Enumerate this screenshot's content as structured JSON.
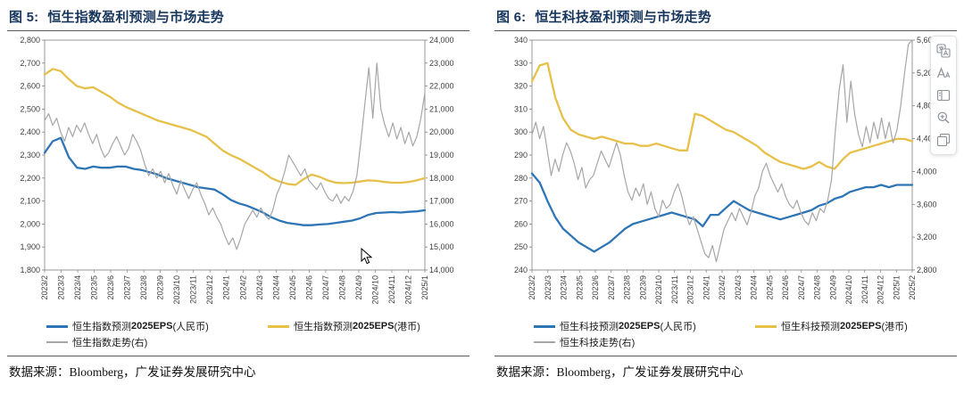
{
  "chart_data": [
    {
      "type": "line",
      "figure_label": "图 5:",
      "title": "恒生指数盈利预测与市场走势",
      "source": "数据来源：Bloomberg，广发证券发展研究中心",
      "grid": false,
      "legend_position": "bottom",
      "axis_left": {
        "min": 1800,
        "max": 2800,
        "step": 100
      },
      "axis_right": {
        "min": 14000,
        "max": 24000,
        "step": 1000
      },
      "x_labels": [
        "2023/2",
        "2023/3",
        "2023/4",
        "2023/5",
        "2023/6",
        "2023/7",
        "2023/8",
        "2023/9",
        "2023/10",
        "2023/11",
        "2023/12",
        "2024/1",
        "2024/2",
        "2024/3",
        "2024/4",
        "2024/5",
        "2024/6",
        "2024/7",
        "2024/8",
        "2024/9",
        "2024/10",
        "2024/11",
        "2024/12",
        "2025/1"
      ],
      "series": [
        {
          "name_parts": [
            "恒生指数预测",
            "2025EPS",
            "(人民币)"
          ],
          "axis": "left",
          "color": "#2e75b6",
          "width": 2.3,
          "values": [
            2310,
            2360,
            2375,
            2290,
            2245,
            2240,
            2250,
            2245,
            2245,
            2250,
            2250,
            2240,
            2235,
            2225,
            2215,
            2200,
            2190,
            2180,
            2170,
            2160,
            2155,
            2150,
            2130,
            2105,
            2090,
            2080,
            2065,
            2050,
            2030,
            2015,
            2005,
            2000,
            1995,
            1995,
            1998,
            2000,
            2005,
            2010,
            2015,
            2025,
            2040,
            2048,
            2050,
            2052,
            2050,
            2053,
            2055,
            2060
          ]
        },
        {
          "name_parts": [
            "恒生指数预测",
            "2025EPS",
            "(港币)"
          ],
          "axis": "left",
          "color": "#e6c049",
          "width": 2.3,
          "values": [
            2650,
            2675,
            2665,
            2630,
            2600,
            2590,
            2595,
            2575,
            2555,
            2530,
            2510,
            2495,
            2480,
            2465,
            2450,
            2440,
            2430,
            2420,
            2410,
            2395,
            2380,
            2350,
            2320,
            2300,
            2285,
            2265,
            2245,
            2225,
            2200,
            2185,
            2175,
            2170,
            2195,
            2215,
            2205,
            2190,
            2180,
            2178,
            2180,
            2185,
            2190,
            2188,
            2183,
            2180,
            2180,
            2183,
            2190,
            2200
          ]
        },
        {
          "name_parts": [
            "恒生指数走势(右)",
            "",
            ""
          ],
          "axis": "right",
          "color": "#a6a6a6",
          "width": 1.2,
          "values": [
            20500,
            20800,
            20300,
            20600,
            20000,
            19600,
            20200,
            19800,
            20300,
            20000,
            20400,
            19900,
            19500,
            19900,
            19300,
            18900,
            19100,
            19500,
            19800,
            19400,
            19000,
            19300,
            19900,
            19600,
            19200,
            18600,
            18100,
            18400,
            18000,
            18300,
            17800,
            18200,
            17700,
            17300,
            17900,
            17500,
            17100,
            17500,
            17800,
            17300,
            16900,
            16400,
            16700,
            16300,
            16000,
            15500,
            15100,
            15400,
            14900,
            15400,
            16000,
            16300,
            16600,
            16300,
            16700,
            16400,
            16200,
            16600,
            17300,
            17700,
            18300,
            19000,
            18700,
            18400,
            18100,
            18400,
            17900,
            17700,
            17500,
            17800,
            17400,
            17100,
            17000,
            17300,
            16900,
            17200,
            17000,
            17400,
            18100,
            19600,
            21200,
            22800,
            20600,
            23000,
            21000,
            20300,
            19800,
            20400,
            19700,
            20200,
            19500,
            20000,
            19400,
            19800,
            20600,
            21700
          ]
        }
      ]
    },
    {
      "type": "line",
      "figure_label": "图 6:",
      "title": "恒生科技盈利预测与市场走势",
      "source": "数据来源：Bloomberg，广发证券发展研究中心",
      "grid": false,
      "legend_position": "bottom",
      "axis_left": {
        "min": 240,
        "max": 340,
        "step": 10
      },
      "axis_right": {
        "min": 2800,
        "max": 5600,
        "step": 400
      },
      "x_labels": [
        "2023/2",
        "2023/3",
        "2023/4",
        "2023/5",
        "2023/6",
        "2023/7",
        "2023/8",
        "2023/9",
        "2023/10",
        "2023/11",
        "2023/12",
        "2024/1",
        "2024/2",
        "2024/3",
        "2024/4",
        "2024/5",
        "2024/6",
        "2024/7",
        "2024/8",
        "2024/9",
        "2024/10",
        "2024/11",
        "2024/12",
        "2025/1",
        "2025/2"
      ],
      "series": [
        {
          "name_parts": [
            "恒生科技预测",
            "2025EPS",
            "(人民币)"
          ],
          "axis": "left",
          "color": "#2e75b6",
          "width": 2.3,
          "values": [
            282,
            278,
            270,
            263,
            258,
            255,
            252,
            250,
            248,
            250,
            252,
            255,
            258,
            260,
            261,
            262,
            263,
            264,
            265,
            264,
            263,
            262,
            259,
            264,
            264,
            267,
            270,
            268,
            266,
            265,
            264,
            263,
            262,
            263,
            264,
            265,
            266,
            268,
            269,
            271,
            272,
            274,
            275,
            276,
            276,
            277,
            276,
            277,
            277,
            277
          ]
        },
        {
          "name_parts": [
            "恒生科技预测",
            "2025EPS",
            "(港币)"
          ],
          "axis": "left",
          "color": "#e6c049",
          "width": 2.3,
          "values": [
            322,
            329,
            330,
            315,
            306,
            301,
            299,
            298,
            297,
            298,
            297,
            296,
            295,
            295,
            294,
            294,
            295,
            294,
            293,
            292,
            292,
            308,
            307,
            305,
            303,
            301,
            300,
            298,
            296,
            294,
            291,
            289,
            287,
            286,
            285,
            284,
            285,
            287,
            285,
            284,
            288,
            291,
            292,
            293,
            294,
            295,
            296,
            297,
            297,
            296
          ]
        },
        {
          "name_parts": [
            "恒生科技走势(右)",
            "",
            ""
          ],
          "axis": "right",
          "color": "#a6a6a6",
          "width": 1.2,
          "values": [
            4450,
            4600,
            4400,
            4550,
            4250,
            3950,
            4150,
            4000,
            4200,
            4350,
            4250,
            4100,
            3900,
            4050,
            3800,
            3900,
            3950,
            4100,
            4250,
            4150,
            4050,
            4200,
            4350,
            4200,
            3950,
            3750,
            3650,
            3800,
            3700,
            3850,
            3600,
            3750,
            3550,
            3450,
            3650,
            3550,
            3600,
            3750,
            3850,
            3700,
            3500,
            3350,
            3450,
            3300,
            3150,
            3000,
            2950,
            3100,
            2900,
            3100,
            3300,
            3400,
            3500,
            3400,
            3550,
            3450,
            3350,
            3500,
            3700,
            3800,
            4000,
            4100,
            3950,
            3850,
            3750,
            3850,
            3700,
            3600,
            3550,
            3650,
            3500,
            3400,
            3350,
            3500,
            3400,
            3550,
            3500,
            3650,
            3900,
            4500,
            5000,
            5300,
            4600,
            5100,
            4700,
            4450,
            4300,
            4550,
            4350,
            4600,
            4400,
            4650,
            4400,
            4600,
            4350,
            4500,
            4800,
            5200,
            5550,
            5600
          ]
        }
      ]
    }
  ],
  "toolbar": {
    "icons": [
      "translate-icon",
      "text-size-icon",
      "sidebar-icon",
      "zoom-in-icon",
      "windows-icon"
    ]
  }
}
